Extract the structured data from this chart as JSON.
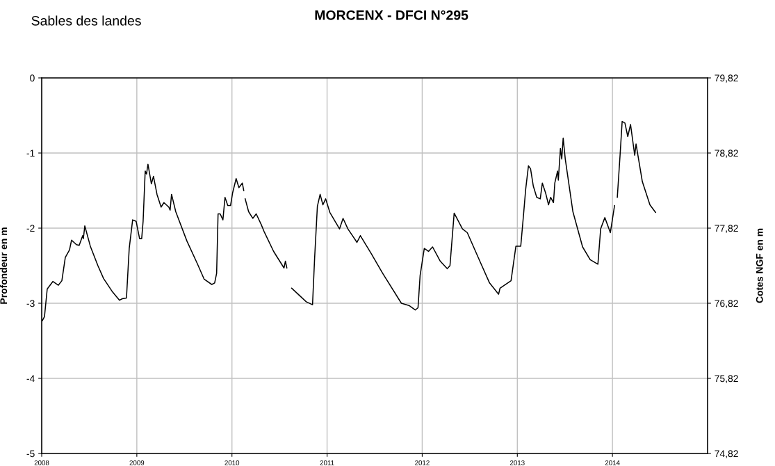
{
  "chart_data": {
    "type": "line",
    "title": "MORCENX - DFCI N°295",
    "annotations": [
      "Sables des landes"
    ],
    "ylabel": "Profondeur en m",
    "y2label": "Cotes NGF en m",
    "xlim": [
      2008,
      2015
    ],
    "xticks": [
      2008,
      2009,
      2010,
      2011,
      2012,
      2013,
      2014
    ],
    "ylim": [
      -5,
      0
    ],
    "yticks": [
      -5,
      -4,
      -3,
      -2,
      -1,
      0
    ],
    "y2lim": [
      74.82,
      79.82
    ],
    "y2ticks": [
      {
        "value": 74.82,
        "label": "74,82"
      },
      {
        "value": 75.82,
        "label": "75,82"
      },
      {
        "value": 76.82,
        "label": "76,82"
      },
      {
        "value": 77.82,
        "label": "77,82"
      },
      {
        "value": 78.82,
        "label": "78,82"
      },
      {
        "value": 79.82,
        "label": "79,82"
      }
    ],
    "grid": true,
    "marker": "none",
    "line_style": "solid",
    "series": [
      {
        "color": "#000000",
        "x": [
          2008.007,
          2008.029,
          2008.058,
          2008.117,
          2008.175,
          2008.212,
          2008.248,
          2008.292,
          2008.314,
          2008.365,
          2008.394,
          2008.431,
          2008.438,
          2008.453,
          2008.511,
          2008.591,
          2008.65,
          2008.745,
          2008.818,
          2008.847,
          2008.891,
          2008.92,
          2008.956,
          2008.993,
          2009.029,
          2009.051,
          2009.066,
          2009.088,
          2009.102,
          2009.117,
          2009.153,
          2009.175,
          2009.212,
          2009.255,
          2009.285,
          2009.336,
          2009.35,
          2009.365,
          2009.409,
          2009.526,
          2009.635,
          2009.708,
          2009.788,
          2009.818,
          2009.839,
          2009.854,
          2009.876,
          2009.905,
          2009.927,
          2009.956,
          2009.985,
          2010.007,
          2010.044,
          2010.073,
          2010.109,
          2010.124,
          2010.131,
          2010.139,
          2010.175,
          2010.219,
          2010.255,
          2010.307,
          2010.336,
          2010.438,
          2010.547,
          2010.562,
          2010.577,
          2010.599,
          2010.628,
          2010.781,
          2010.847,
          2010.869,
          2010.898,
          2010.927,
          2010.956,
          2010.985,
          2011.029,
          2011.131,
          2011.168,
          2011.219,
          2011.314,
          2011.35,
          2011.46,
          2011.584,
          2011.781,
          2011.861,
          2011.927,
          2011.956,
          2011.978,
          2012.022,
          2012.066,
          2012.109,
          2012.19,
          2012.263,
          2012.292,
          2012.336,
          2012.423,
          2012.474,
          2012.606,
          2012.708,
          2012.803,
          2012.818,
          2012.934,
          2012.985,
          2013.036,
          2013.066,
          2013.088,
          2013.117,
          2013.139,
          2013.168,
          2013.204,
          2013.241,
          2013.263,
          2013.299,
          2013.328,
          2013.35,
          2013.38,
          2013.394,
          2013.423,
          2013.431,
          2013.453,
          2013.467,
          2013.482,
          2013.504,
          2013.584,
          2013.686,
          2013.766,
          2013.847,
          2013.876,
          2013.92,
          2013.978,
          2014.022,
          2014.036,
          2014.051,
          2014.08,
          2014.102,
          2014.131,
          2014.161,
          2014.19,
          2014.234,
          2014.248,
          2014.314,
          2014.394,
          2014.453
        ],
        "values": [
          -3.23,
          -3.18,
          -2.81,
          -2.71,
          -2.76,
          -2.7,
          -2.39,
          -2.29,
          -2.16,
          -2.22,
          -2.23,
          -2.1,
          -2.14,
          -1.97,
          -2.24,
          -2.5,
          -2.67,
          -2.85,
          -2.96,
          -2.94,
          -2.93,
          -2.27,
          -1.89,
          -1.91,
          -2.14,
          -2.14,
          -1.91,
          -1.24,
          -1.28,
          -1.15,
          -1.41,
          -1.31,
          -1.55,
          -1.72,
          -1.66,
          -1.72,
          -1.76,
          -1.55,
          -1.78,
          -2.17,
          -2.47,
          -2.68,
          -2.75,
          -2.73,
          -2.6,
          -1.81,
          -1.81,
          -1.89,
          -1.59,
          -1.7,
          -1.7,
          -1.53,
          -1.34,
          -1.46,
          -1.4,
          -1.5,
          null,
          -1.61,
          -1.78,
          -1.87,
          -1.81,
          -1.95,
          -2.04,
          -2.31,
          -2.53,
          -2.44,
          -2.53,
          null,
          -2.8,
          -2.98,
          -3.02,
          -2.4,
          -1.71,
          -1.55,
          -1.69,
          -1.61,
          -1.79,
          -2.01,
          -1.87,
          -2.01,
          -2.19,
          -2.1,
          -2.33,
          -2.6,
          -3.0,
          -3.03,
          -3.09,
          -3.06,
          -2.63,
          -2.27,
          -2.31,
          -2.25,
          -2.44,
          -2.54,
          -2.5,
          -1.8,
          -2.01,
          -2.06,
          -2.44,
          -2.73,
          -2.88,
          -2.8,
          -2.7,
          -2.24,
          -2.24,
          -1.81,
          -1.48,
          -1.17,
          -1.21,
          -1.44,
          -1.59,
          -1.61,
          -1.4,
          -1.54,
          -1.69,
          -1.59,
          -1.66,
          -1.4,
          -1.24,
          -1.36,
          -0.94,
          -1.08,
          -0.8,
          -1.08,
          -1.78,
          -2.25,
          -2.42,
          -2.48,
          -2.01,
          -1.86,
          -2.06,
          -1.7,
          null,
          -1.59,
          -1.03,
          -0.58,
          -0.6,
          -0.78,
          -0.62,
          -1.03,
          -0.88,
          -1.38,
          -1.69,
          -1.79
        ]
      }
    ]
  }
}
